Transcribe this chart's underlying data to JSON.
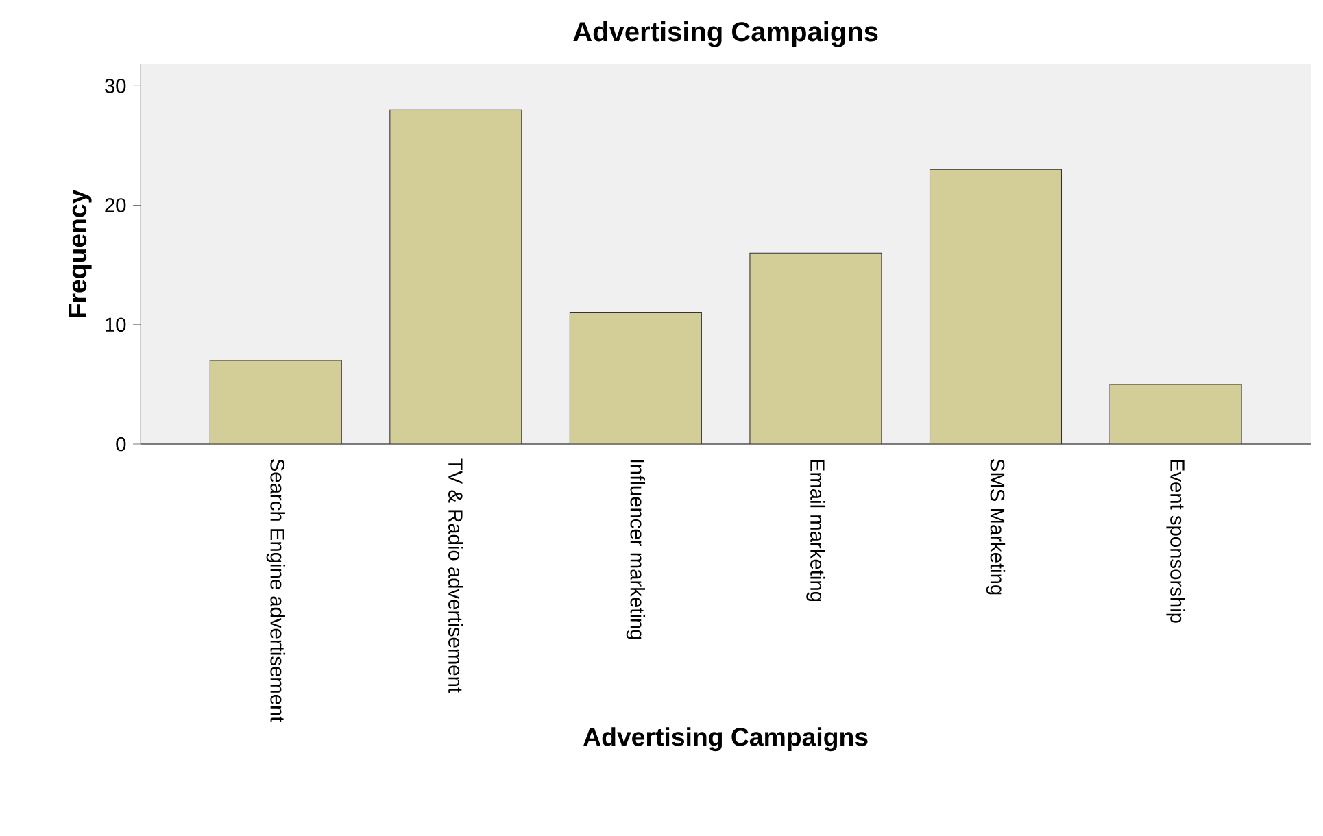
{
  "chart_data": {
    "type": "bar",
    "title": "Advertising Campaigns",
    "xlabel": "Advertising Campaigns",
    "ylabel": "Frequency",
    "categories": [
      "Search Engine advertisement",
      "TV & Radio advertisement",
      "Influencer marketing",
      "Email marketing",
      "SMS Marketing",
      "Event sponsorship"
    ],
    "values": [
      7,
      28,
      11,
      16,
      23,
      5
    ],
    "color": "#d3ce97",
    "ylim": [
      0,
      31.8
    ],
    "yticks": [
      0,
      10,
      20,
      30
    ]
  }
}
